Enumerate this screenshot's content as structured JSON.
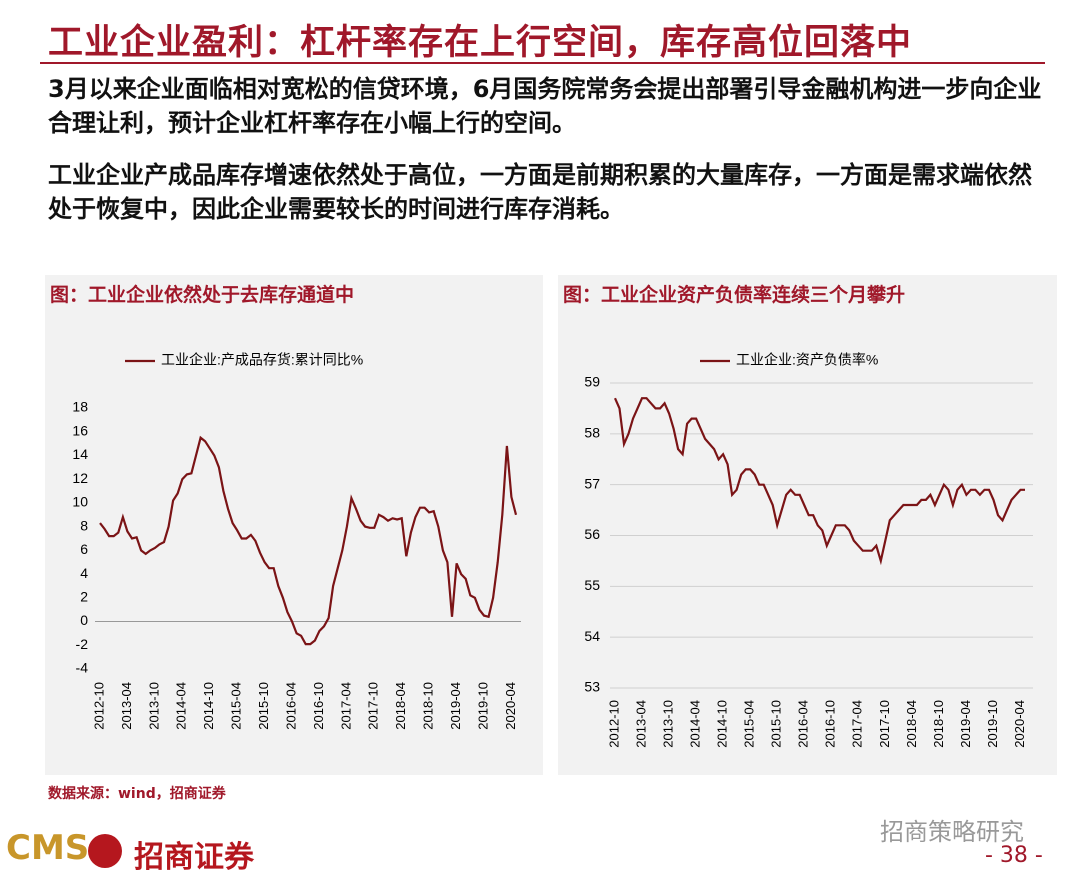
{
  "header": {
    "title": "工业企业盈利：杠杆率存在上行空间，库存高位回落中"
  },
  "paragraphs": [
    "3月以来企业面临相对宽松的信贷环境，6月国务院常务会提出部署引导金融机构进一步向企业合理让利，预计企业杠杆率存在小幅上行的空间。",
    "工业企业产成品库存增速依然处于高位，一方面是前期积累的大量库存，一方面是需求端依然处于恢复中，因此企业需要较长的时间进行库存消耗。"
  ],
  "chart_data": [
    {
      "type": "line",
      "title": "图：工业企业依然处于去库存通道中",
      "categories": [
        "2012-10",
        null,
        null,
        null,
        null,
        null,
        "2013-04",
        null,
        null,
        null,
        null,
        null,
        "2013-10",
        null,
        null,
        null,
        null,
        null,
        "2014-04",
        null,
        null,
        null,
        null,
        null,
        "2014-10",
        null,
        null,
        null,
        null,
        null,
        "2015-04",
        null,
        null,
        null,
        null,
        null,
        "2015-10",
        null,
        null,
        null,
        null,
        null,
        "2016-04",
        null,
        null,
        null,
        null,
        null,
        "2016-10",
        null,
        null,
        null,
        null,
        null,
        "2017-04",
        null,
        null,
        null,
        null,
        null,
        "2017-10",
        null,
        null,
        null,
        null,
        null,
        "2018-04",
        null,
        null,
        null,
        null,
        null,
        "2018-10",
        null,
        null,
        null,
        null,
        null,
        "2019-04",
        null,
        null,
        null,
        null,
        null,
        "2019-10",
        null,
        null,
        null,
        null,
        null,
        "2020-04",
        null
      ],
      "series": [
        {
          "name": "工业企业:产成品存货:累计同比%",
          "color": "#7b1416",
          "values": [
            8.3,
            7.8,
            7.2,
            7.2,
            7.5,
            8.8,
            7.6,
            7.0,
            7.1,
            6.0,
            5.7,
            6.0,
            6.2,
            6.5,
            6.7,
            8.0,
            10.2,
            10.8,
            12.0,
            12.4,
            12.5,
            14.0,
            15.5,
            15.2,
            14.6,
            14.0,
            13.0,
            11.0,
            9.5,
            8.3,
            7.7,
            7.0,
            7.0,
            7.3,
            6.8,
            5.8,
            5.0,
            4.5,
            4.5,
            3.0,
            2.0,
            0.8,
            0.0,
            -1.0,
            -1.2,
            -1.9,
            -1.9,
            -1.6,
            -0.8,
            -0.4,
            0.3,
            3.0,
            4.5,
            6.0,
            8.0,
            10.4,
            9.5,
            8.5,
            8.0,
            7.9,
            7.9,
            9.0,
            8.8,
            8.5,
            8.7,
            8.6,
            8.7,
            5.5,
            7.5,
            8.8,
            9.6,
            9.6,
            9.2,
            9.3,
            8.0,
            6.0,
            5.0,
            0.4,
            4.9,
            4.0,
            3.6,
            2.2,
            2.0,
            1.0,
            0.5,
            0.4,
            2.0,
            5.0,
            9.0,
            14.8,
            10.5,
            9.0
          ]
        }
      ],
      "ylim": [
        -4,
        18
      ],
      "yticks": [
        -4,
        -2,
        0,
        2,
        4,
        6,
        8,
        10,
        12,
        14,
        16,
        18
      ],
      "grid": false,
      "legend": "top"
    },
    {
      "type": "line",
      "title": "图：工业企业资产负债率连续三个月攀升",
      "categories": [
        "2012-10",
        null,
        null,
        null,
        null,
        null,
        "2013-04",
        null,
        null,
        null,
        null,
        null,
        "2013-10",
        null,
        null,
        null,
        null,
        null,
        "2014-04",
        null,
        null,
        null,
        null,
        null,
        "2014-10",
        null,
        null,
        null,
        null,
        null,
        "2015-04",
        null,
        null,
        null,
        null,
        null,
        "2015-10",
        null,
        null,
        null,
        null,
        null,
        "2016-04",
        null,
        null,
        null,
        null,
        null,
        "2016-10",
        null,
        null,
        null,
        null,
        null,
        "2017-04",
        null,
        null,
        null,
        null,
        null,
        "2017-10",
        null,
        null,
        null,
        null,
        null,
        "2018-04",
        null,
        null,
        null,
        null,
        null,
        "2018-10",
        null,
        null,
        null,
        null,
        null,
        "2019-04",
        null,
        null,
        null,
        null,
        null,
        "2019-10",
        null,
        null,
        null,
        null,
        null,
        "2020-04",
        null
      ],
      "series": [
        {
          "name": "工业企业:资产负债率%",
          "color": "#7b1416",
          "values": [
            58.7,
            58.5,
            57.8,
            58.0,
            58.3,
            58.5,
            58.7,
            58.7,
            58.6,
            58.5,
            58.5,
            58.6,
            58.4,
            58.1,
            57.7,
            57.6,
            58.2,
            58.3,
            58.3,
            58.1,
            57.9,
            57.8,
            57.7,
            57.5,
            57.6,
            57.4,
            56.8,
            56.9,
            57.2,
            57.3,
            57.3,
            57.2,
            57.0,
            57.0,
            56.8,
            56.6,
            56.2,
            56.5,
            56.8,
            56.9,
            56.8,
            56.8,
            56.6,
            56.4,
            56.4,
            56.2,
            56.1,
            55.8,
            56.0,
            56.2,
            56.2,
            56.2,
            56.1,
            55.9,
            55.8,
            55.7,
            55.7,
            55.7,
            55.8,
            55.5,
            55.9,
            56.3,
            56.4,
            56.5,
            56.6,
            56.6,
            56.6,
            56.6,
            56.7,
            56.7,
            56.8,
            56.6,
            56.8,
            57.0,
            56.9,
            56.6,
            56.9,
            57.0,
            56.8,
            56.9,
            56.9,
            56.8,
            56.9,
            56.9,
            56.7,
            56.4,
            56.3,
            56.5,
            56.7,
            56.8,
            56.9,
            56.9
          ]
        }
      ],
      "ylim": [
        53,
        59
      ],
      "yticks": [
        53,
        54,
        55,
        56,
        57,
        58,
        59
      ],
      "grid": true,
      "legend": "top"
    }
  ],
  "source": "数据来源：wind，招商证券",
  "footer": {
    "logo": "CMS",
    "brand": "招商证券",
    "watermark": "招商策略研究",
    "page": "- 38 -"
  }
}
